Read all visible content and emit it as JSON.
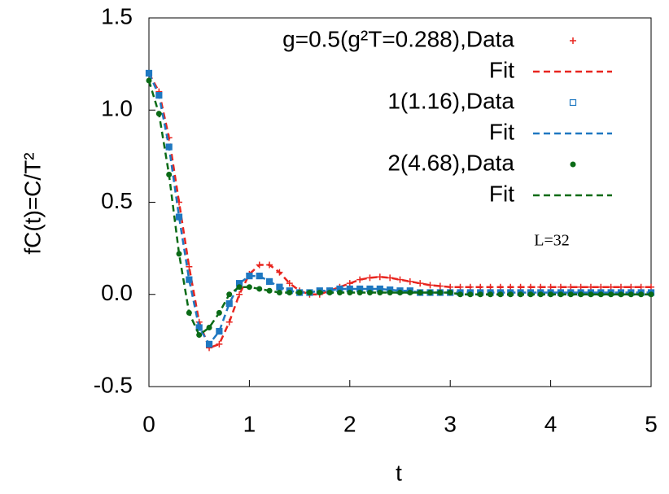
{
  "chart_data": {
    "type": "line",
    "x_label": "t",
    "y_label": "fC(t)=C/T²",
    "annotation": "L=32",
    "xlim": [
      0,
      5
    ],
    "xticks": [
      0,
      1,
      2,
      3,
      4,
      5
    ],
    "ylim": [
      -0.5,
      1.5
    ],
    "yticks": [
      {
        "value": -0.5,
        "label": "-0.5"
      },
      {
        "value": 0,
        "label": "0.0"
      },
      {
        "value": 0.5,
        "label": "0.5"
      },
      {
        "value": 1,
        "label": "1.0"
      },
      {
        "value": 1.5,
        "label": "1.5"
      }
    ],
    "x": [
      0,
      0.1,
      0.2,
      0.3,
      0.4,
      0.5,
      0.6,
      0.7,
      0.8,
      0.9,
      1,
      1.1,
      1.2,
      1.3,
      1.4,
      1.5,
      1.6,
      1.7,
      1.8,
      1.9,
      2,
      2.1,
      2.2,
      2.3,
      2.4,
      2.5,
      2.6,
      2.7,
      2.8,
      2.9,
      3,
      3.1,
      3.2,
      3.3,
      3.4,
      3.5,
      3.6,
      3.7,
      3.8,
      3.9,
      4,
      4.1,
      4.2,
      4.3,
      4.4,
      4.5,
      4.6,
      4.7,
      4.8,
      4.9,
      5
    ],
    "series": [
      {
        "name": "g=0.5(g²T=0.288),Data",
        "kind": "points",
        "marker": "plus",
        "color": "#e8251f",
        "values": [
          1.2,
          1.1,
          0.85,
          0.5,
          0.15,
          -0.15,
          -0.29,
          -0.27,
          -0.15,
          0.0,
          0.11,
          0.16,
          0.16,
          0.12,
          0.06,
          0.02,
          0.0,
          0.0,
          0.02,
          0.04,
          0.06,
          0.08,
          0.09,
          0.095,
          0.09,
          0.08,
          0.07,
          0.06,
          0.05,
          0.045,
          0.04,
          0.04,
          0.04,
          0.04,
          0.04,
          0.04,
          0.04,
          0.04,
          0.04,
          0.04,
          0.04,
          0.04,
          0.04,
          0.04,
          0.04,
          0.04,
          0.04,
          0.04,
          0.04,
          0.04,
          0.04
        ]
      },
      {
        "name": "Fit",
        "kind": "dashed",
        "color": "#e8251f",
        "values": [
          1.2,
          1.1,
          0.85,
          0.5,
          0.15,
          -0.15,
          -0.29,
          -0.27,
          -0.15,
          0.0,
          0.11,
          0.16,
          0.16,
          0.12,
          0.06,
          0.02,
          0.0,
          0.0,
          0.02,
          0.04,
          0.06,
          0.08,
          0.09,
          0.095,
          0.09,
          0.08,
          0.07,
          0.06,
          0.05,
          0.045,
          0.04,
          0.04,
          0.04,
          0.04,
          0.04,
          0.04,
          0.04,
          0.04,
          0.04,
          0.04,
          0.04,
          0.04,
          0.04,
          0.04,
          0.04,
          0.04,
          0.04,
          0.04,
          0.04,
          0.04,
          0.04
        ]
      },
      {
        "name": "1(1.16),Data",
        "kind": "points",
        "marker": "square",
        "color": "#1f78c1",
        "values": [
          1.2,
          1.08,
          0.8,
          0.42,
          0.08,
          -0.18,
          -0.27,
          -0.2,
          -0.05,
          0.06,
          0.1,
          0.1,
          0.07,
          0.04,
          0.02,
          0.01,
          0.01,
          0.02,
          0.02,
          0.03,
          0.03,
          0.03,
          0.03,
          0.03,
          0.025,
          0.02,
          0.02,
          0.01,
          0.01,
          0.01,
          0.01,
          0.01,
          0.01,
          0.01,
          0.01,
          0.01,
          0.01,
          0.01,
          0.01,
          0.01,
          0.01,
          0.01,
          0.01,
          0.01,
          0.01,
          0.01,
          0.01,
          0.01,
          0.01,
          0.01,
          0.01
        ]
      },
      {
        "name": "Fit",
        "kind": "dashed",
        "color": "#1f78c1",
        "values": [
          1.2,
          1.08,
          0.8,
          0.42,
          0.08,
          -0.18,
          -0.27,
          -0.2,
          -0.05,
          0.06,
          0.1,
          0.1,
          0.07,
          0.04,
          0.02,
          0.01,
          0.01,
          0.02,
          0.02,
          0.03,
          0.03,
          0.03,
          0.03,
          0.03,
          0.025,
          0.02,
          0.02,
          0.01,
          0.01,
          0.01,
          0.01,
          0.01,
          0.01,
          0.01,
          0.01,
          0.01,
          0.01,
          0.01,
          0.01,
          0.01,
          0.01,
          0.01,
          0.01,
          0.01,
          0.01,
          0.01,
          0.01,
          0.01,
          0.01,
          0.01,
          0.01
        ]
      },
      {
        "name": "2(4.68),Data",
        "kind": "points",
        "marker": "circle",
        "color": "#0b6b16",
        "values": [
          1.16,
          0.98,
          0.65,
          0.22,
          -0.1,
          -0.22,
          -0.18,
          -0.1,
          0.0,
          0.04,
          0.04,
          0.03,
          0.02,
          0.01,
          0.01,
          0.01,
          0.01,
          0.01,
          0.01,
          0.01,
          0.01,
          0.01,
          0.01,
          0.01,
          0.01,
          0.01,
          0.01,
          0.01,
          0.01,
          0.01,
          0.01,
          0,
          0,
          0,
          0,
          0,
          0,
          0,
          0,
          0,
          0,
          0,
          0,
          0,
          0,
          0,
          0,
          0,
          0,
          0,
          0
        ]
      },
      {
        "name": "Fit",
        "kind": "dashed",
        "color": "#0b6b16",
        "values": [
          1.16,
          0.98,
          0.65,
          0.22,
          -0.1,
          -0.22,
          -0.18,
          -0.1,
          0.0,
          0.04,
          0.04,
          0.03,
          0.02,
          0.01,
          0.01,
          0.01,
          0.01,
          0.01,
          0.01,
          0.01,
          0.01,
          0.01,
          0.01,
          0.01,
          0.01,
          0.01,
          0.01,
          0.01,
          0.01,
          0.01,
          0.01,
          0,
          0,
          0,
          0,
          0,
          0,
          0,
          0,
          0,
          0,
          0,
          0,
          0,
          0,
          0,
          0,
          0,
          0,
          0,
          0
        ]
      }
    ]
  }
}
